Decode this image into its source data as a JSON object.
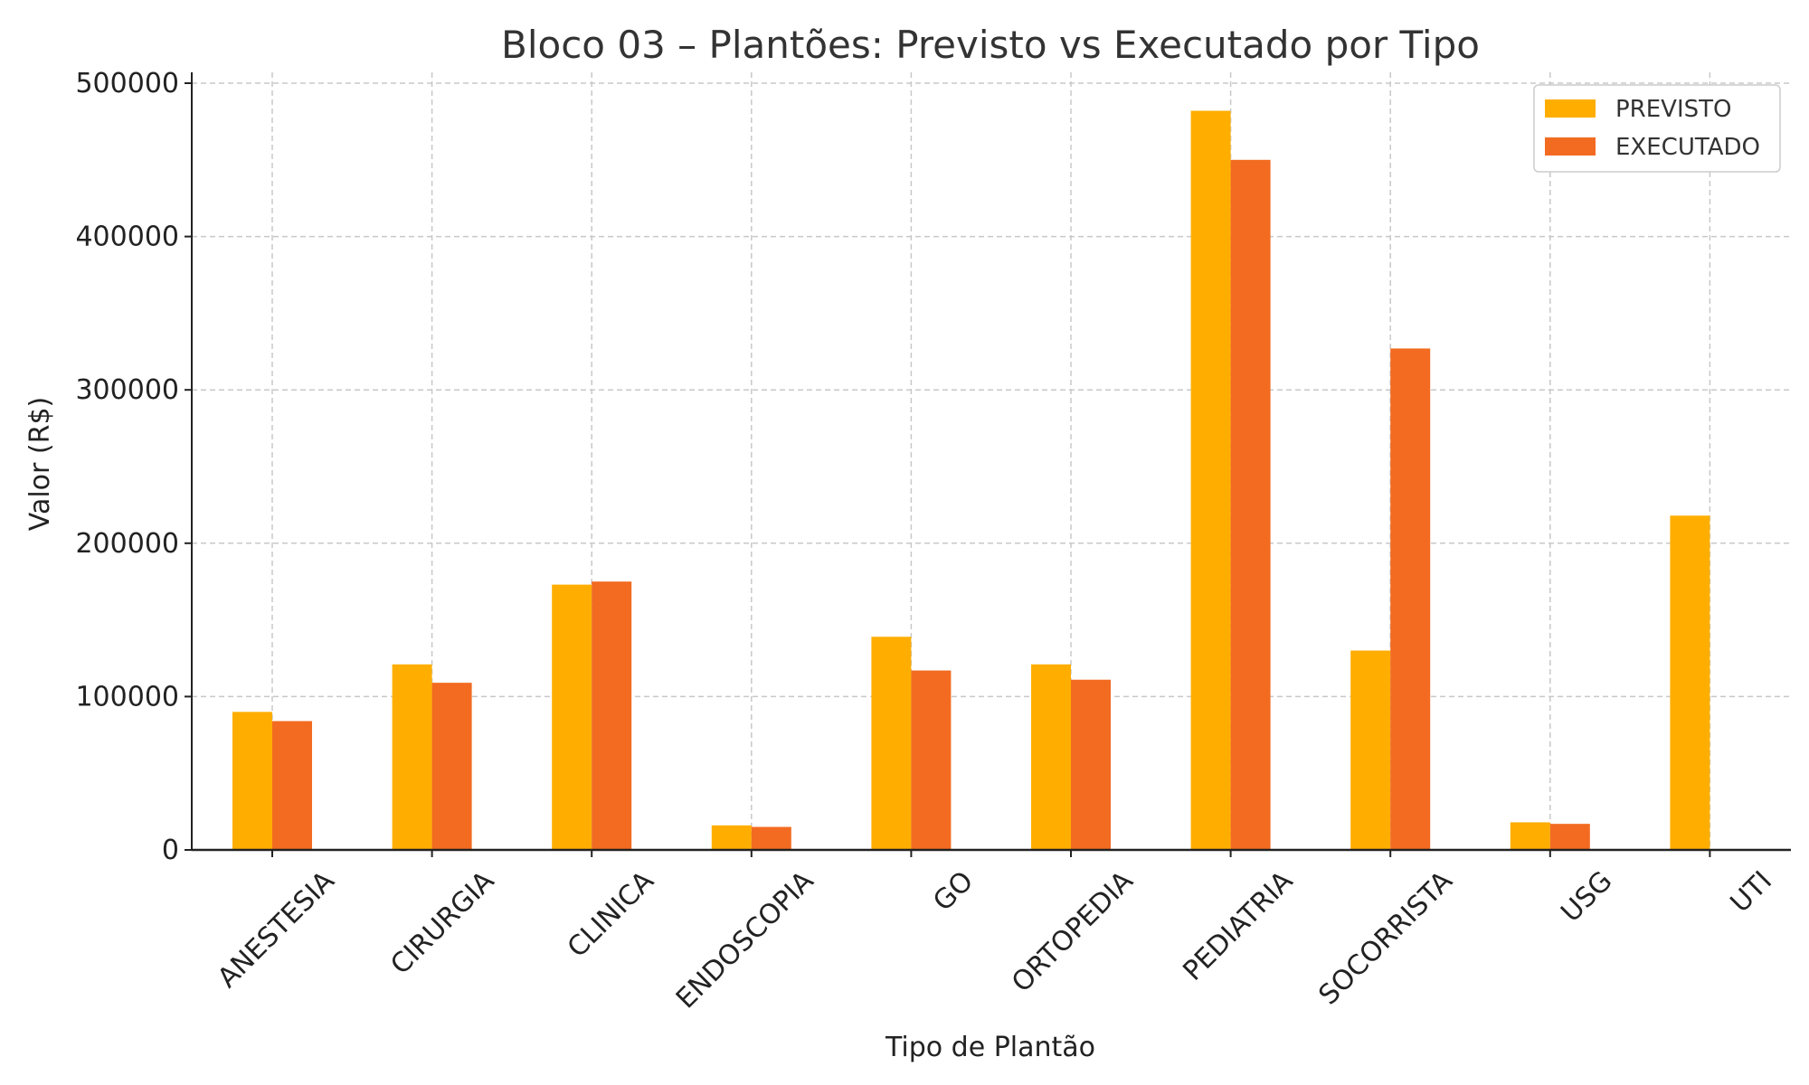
{
  "chart_data": {
    "type": "bar",
    "title": "Bloco 03 – Plantões: Previsto vs Executado por Tipo",
    "xlabel": "Tipo de Plantão",
    "ylabel": "Valor (R$)",
    "categories": [
      "ANESTESIA",
      "CIRURGIA",
      "CLINICA",
      "ENDOSCOPIA",
      "GO",
      "ORTOPEDIA",
      "PEDIATRIA",
      "SOCORRISTA",
      "USG",
      "UTI"
    ],
    "series": [
      {
        "name": "PREVISTO",
        "color": "#FFAE00",
        "values": [
          90000,
          121000,
          173000,
          16000,
          139000,
          121000,
          482000,
          130000,
          18000,
          218000
        ]
      },
      {
        "name": "EXECUTADO",
        "color": "#F26B21",
        "values": [
          84000,
          109000,
          175000,
          15000,
          117000,
          111000,
          450000,
          327000,
          17000,
          0
        ]
      }
    ],
    "ylim": [
      0,
      500000
    ],
    "yticks": [
      0,
      100000,
      200000,
      300000,
      400000,
      500000
    ],
    "ytick_labels": [
      "0",
      "100000",
      "200000",
      "300000",
      "400000",
      "500000"
    ],
    "grid": true,
    "legend_position": "top-right"
  }
}
